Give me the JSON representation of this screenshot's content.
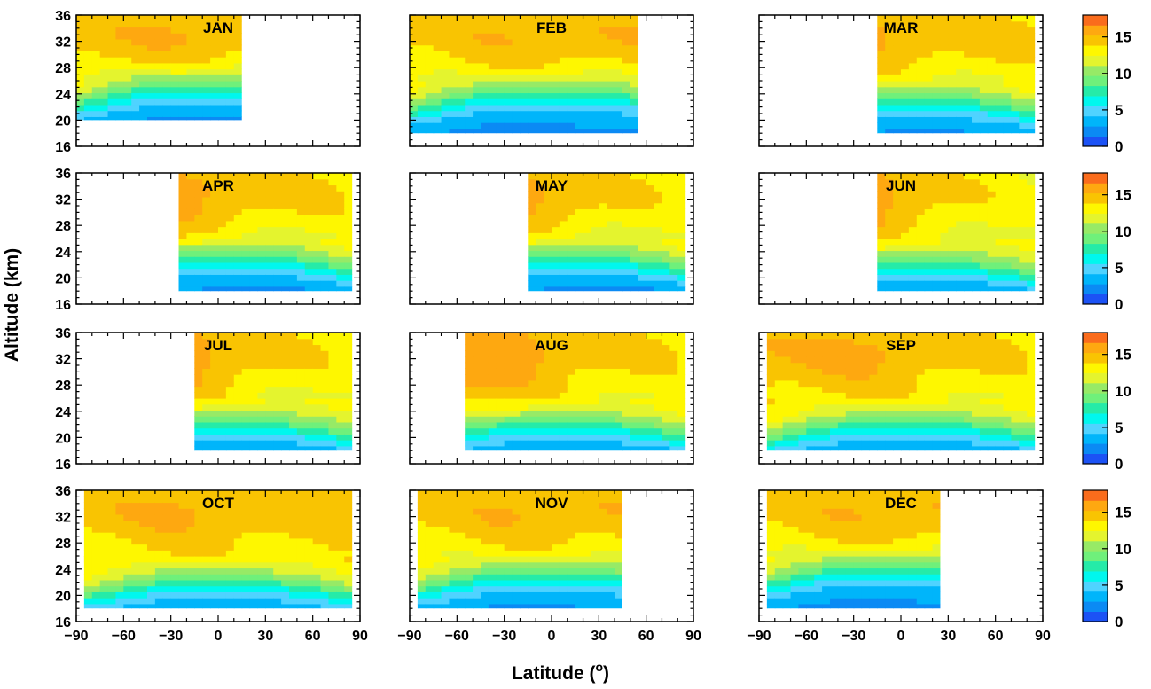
{
  "chart_data": {
    "type": "heatmap",
    "xlabel": "Latitude (",
    "xlabel_sup": "o",
    "xlabel_end": ")",
    "ylabel": "Altitude (km)",
    "x_ticks": [
      "−90",
      "−60",
      "−30",
      "0",
      "30",
      "60",
      "90"
    ],
    "y_ticks": [
      "16",
      "20",
      "24",
      "28",
      "32",
      "36"
    ],
    "xlim": [
      -90,
      90
    ],
    "ylim": [
      16,
      36
    ],
    "colorbar_ticks": [
      "0",
      "5",
      "10",
      "15"
    ],
    "colorbar_range": [
      0,
      18
    ],
    "levels": [
      0,
      1.5,
      3,
      4.5,
      6,
      7.5,
      9,
      10.5,
      12,
      13.5,
      15,
      16.5,
      18
    ],
    "colors": [
      "#1c52f5",
      "#0b8af4",
      "#00b5fa",
      "#4fd3ff",
      "#00f7ee",
      "#25eba8",
      "#6ff07b",
      "#97ea66",
      "#e4f42e",
      "#fef700",
      "#f9c402",
      "#fea810",
      "#fa6c1c"
    ],
    "panels": [
      {
        "month": "JAN",
        "lat_range": [
          -90,
          15
        ],
        "alt_floor": 20
      },
      {
        "month": "FEB",
        "lat_range": [
          -90,
          55
        ],
        "alt_floor": 18
      },
      {
        "month": "MAR",
        "lat_range": [
          -15,
          85
        ],
        "alt_floor": 18
      },
      {
        "month": "APR",
        "lat_range": [
          -25,
          85
        ],
        "alt_floor": 18
      },
      {
        "month": "MAY",
        "lat_range": [
          -15,
          85
        ],
        "alt_floor": 18
      },
      {
        "month": "JUN",
        "lat_range": [
          -15,
          85
        ],
        "alt_floor": 18
      },
      {
        "month": "JUL",
        "lat_range": [
          -15,
          85
        ],
        "alt_floor": 18
      },
      {
        "month": "AUG",
        "lat_range": [
          -55,
          85
        ],
        "alt_floor": 18
      },
      {
        "month": "SEP",
        "lat_range": [
          -85,
          85
        ],
        "alt_floor": 18
      },
      {
        "month": "OCT",
        "lat_range": [
          -85,
          85
        ],
        "alt_floor": 18
      },
      {
        "month": "NOV",
        "lat_range": [
          -85,
          45
        ],
        "alt_floor": 18
      },
      {
        "month": "DEC",
        "lat_range": [
          -85,
          25
        ],
        "alt_floor": 18
      }
    ]
  }
}
